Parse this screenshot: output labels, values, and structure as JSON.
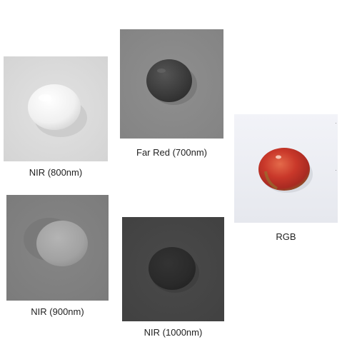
{
  "panels": [
    {
      "id": "nir800",
      "caption": "NIR (800nm)",
      "background": "#dcdcdc",
      "fruit": "#f2f2f2",
      "shadow": "#bdbdbd"
    },
    {
      "id": "far700",
      "caption": "Far Red (700nm)",
      "background": "#8c8c8c",
      "fruit": "#3c3c3c",
      "shadow": "#6f6f6f"
    },
    {
      "id": "rgb",
      "caption": "RGB",
      "background": "#eceef3",
      "fruit": "#c0392b",
      "shadow": "#c8cad0"
    },
    {
      "id": "nir900",
      "caption": "NIR (900nm)",
      "background": "#808080",
      "fruit": "#a8a8a8",
      "shadow": "#6e6e6e"
    },
    {
      "id": "nir1000",
      "caption": "NIR (1000nm)",
      "background": "#464646",
      "fruit": "#2a2a2a",
      "shadow": "#3a3a3a"
    }
  ]
}
